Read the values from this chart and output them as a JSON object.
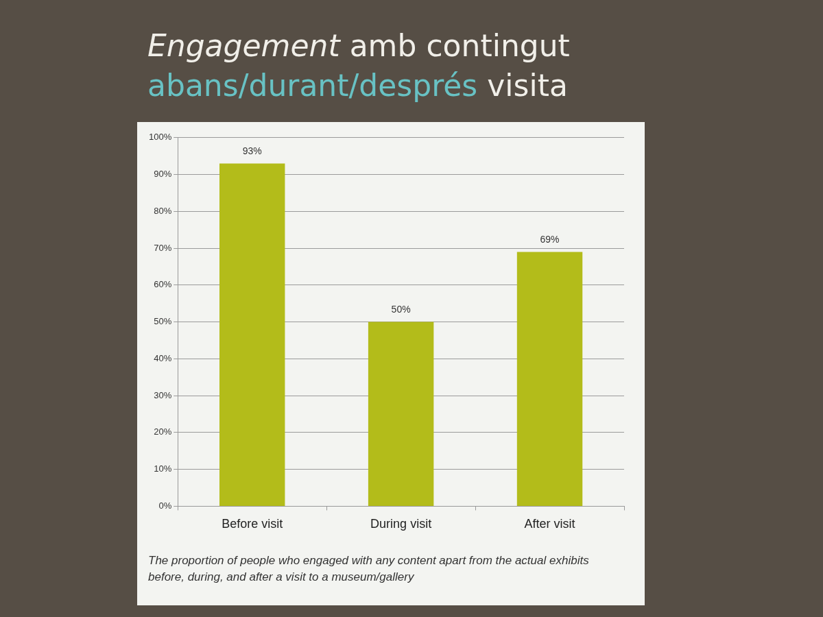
{
  "chart_data": {
    "type": "bar",
    "title": "Engagement amb contingut abans/durant/després visita",
    "categories": [
      "Before visit",
      "During visit",
      "After visit"
    ],
    "values": [
      93,
      50,
      69
    ],
    "color": "#b3bc1a",
    "value_labels": [
      "93%",
      "50%",
      "69%"
    ],
    "ylim": [
      0,
      100
    ],
    "yticks": [
      {
        "value": 0,
        "label": "0%"
      },
      {
        "value": 10,
        "label": "10%"
      },
      {
        "value": 20,
        "label": "20%"
      },
      {
        "value": 30,
        "label": "30%"
      },
      {
        "value": 40,
        "label": "40%"
      },
      {
        "value": 50,
        "label": "50%"
      },
      {
        "value": 60,
        "label": "60%"
      },
      {
        "value": 70,
        "label": "70%"
      },
      {
        "value": 80,
        "label": "80%"
      },
      {
        "value": 90,
        "label": "90%"
      },
      {
        "value": 100,
        "label": "100%"
      }
    ],
    "grid": "y",
    "annotations": [
      "The proportion of people who engaged with any content apart from the actual exhibits before, during, and after a visit to a museum/gallery"
    ]
  }
}
